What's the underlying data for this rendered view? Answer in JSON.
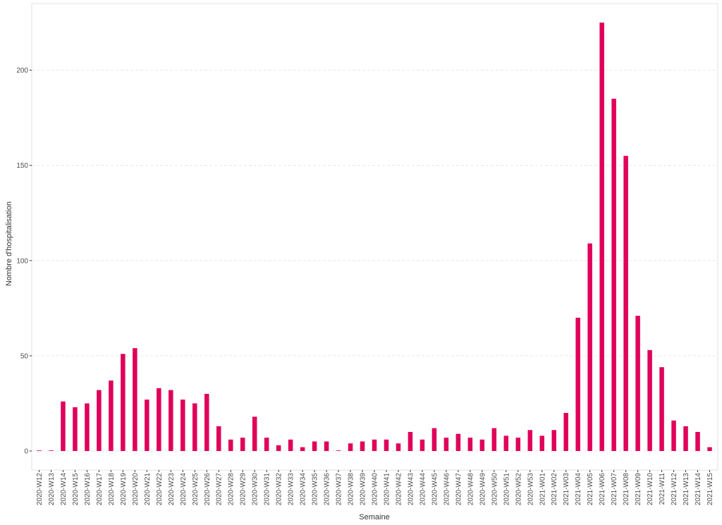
{
  "chart_data": {
    "type": "bar",
    "xlabel": "Semaine",
    "ylabel": "Nombre d'hospitalisation",
    "ylim": [
      -10,
      235
    ],
    "yticks": [
      0,
      50,
      100,
      150,
      200
    ],
    "grid": true,
    "bar_color": "#E0005A",
    "categories": [
      "2020-W12",
      "2020-W13",
      "2020-W14",
      "2020-W15",
      "2020-W16",
      "2020-W17",
      "2020-W18",
      "2020-W19",
      "2020-W20",
      "2020-W21",
      "2020-W22",
      "2020-W23",
      "2020-W24",
      "2020-W25",
      "2020-W26",
      "2020-W27",
      "2020-W28",
      "2020-W29",
      "2020-W30",
      "2020-W31",
      "2020-W32",
      "2020-W33",
      "2020-W34",
      "2020-W35",
      "2020-W36",
      "2020-W37",
      "2020-W38",
      "2020-W39",
      "2020-W40",
      "2020-W41",
      "2020-W42",
      "2020-W43",
      "2020-W44",
      "2020-W45",
      "2020-W46",
      "2020-W47",
      "2020-W48",
      "2020-W49",
      "2020-W50",
      "2020-W51",
      "2020-W52",
      "2020-W53",
      "2021-W01",
      "2021-W02",
      "2021-W03",
      "2021-W04",
      "2021-W05",
      "2021-W06",
      "2021-W07",
      "2021-W08",
      "2021-W09",
      "2021-W10",
      "2021-W11",
      "2021-W12",
      "2021-W13",
      "2021-W14",
      "2021-W15"
    ],
    "values": [
      0,
      0,
      26,
      23,
      25,
      32,
      37,
      51,
      54,
      27,
      33,
      32,
      27,
      25,
      30,
      13,
      6,
      7,
      18,
      7,
      3,
      6,
      2,
      5,
      5,
      0,
      4,
      5,
      6,
      6,
      4,
      10,
      6,
      12,
      7,
      9,
      7,
      6,
      12,
      8,
      7,
      11,
      8,
      11,
      20,
      70,
      109,
      225,
      185,
      155,
      71,
      53,
      44,
      16,
      13,
      10,
      2
    ]
  }
}
